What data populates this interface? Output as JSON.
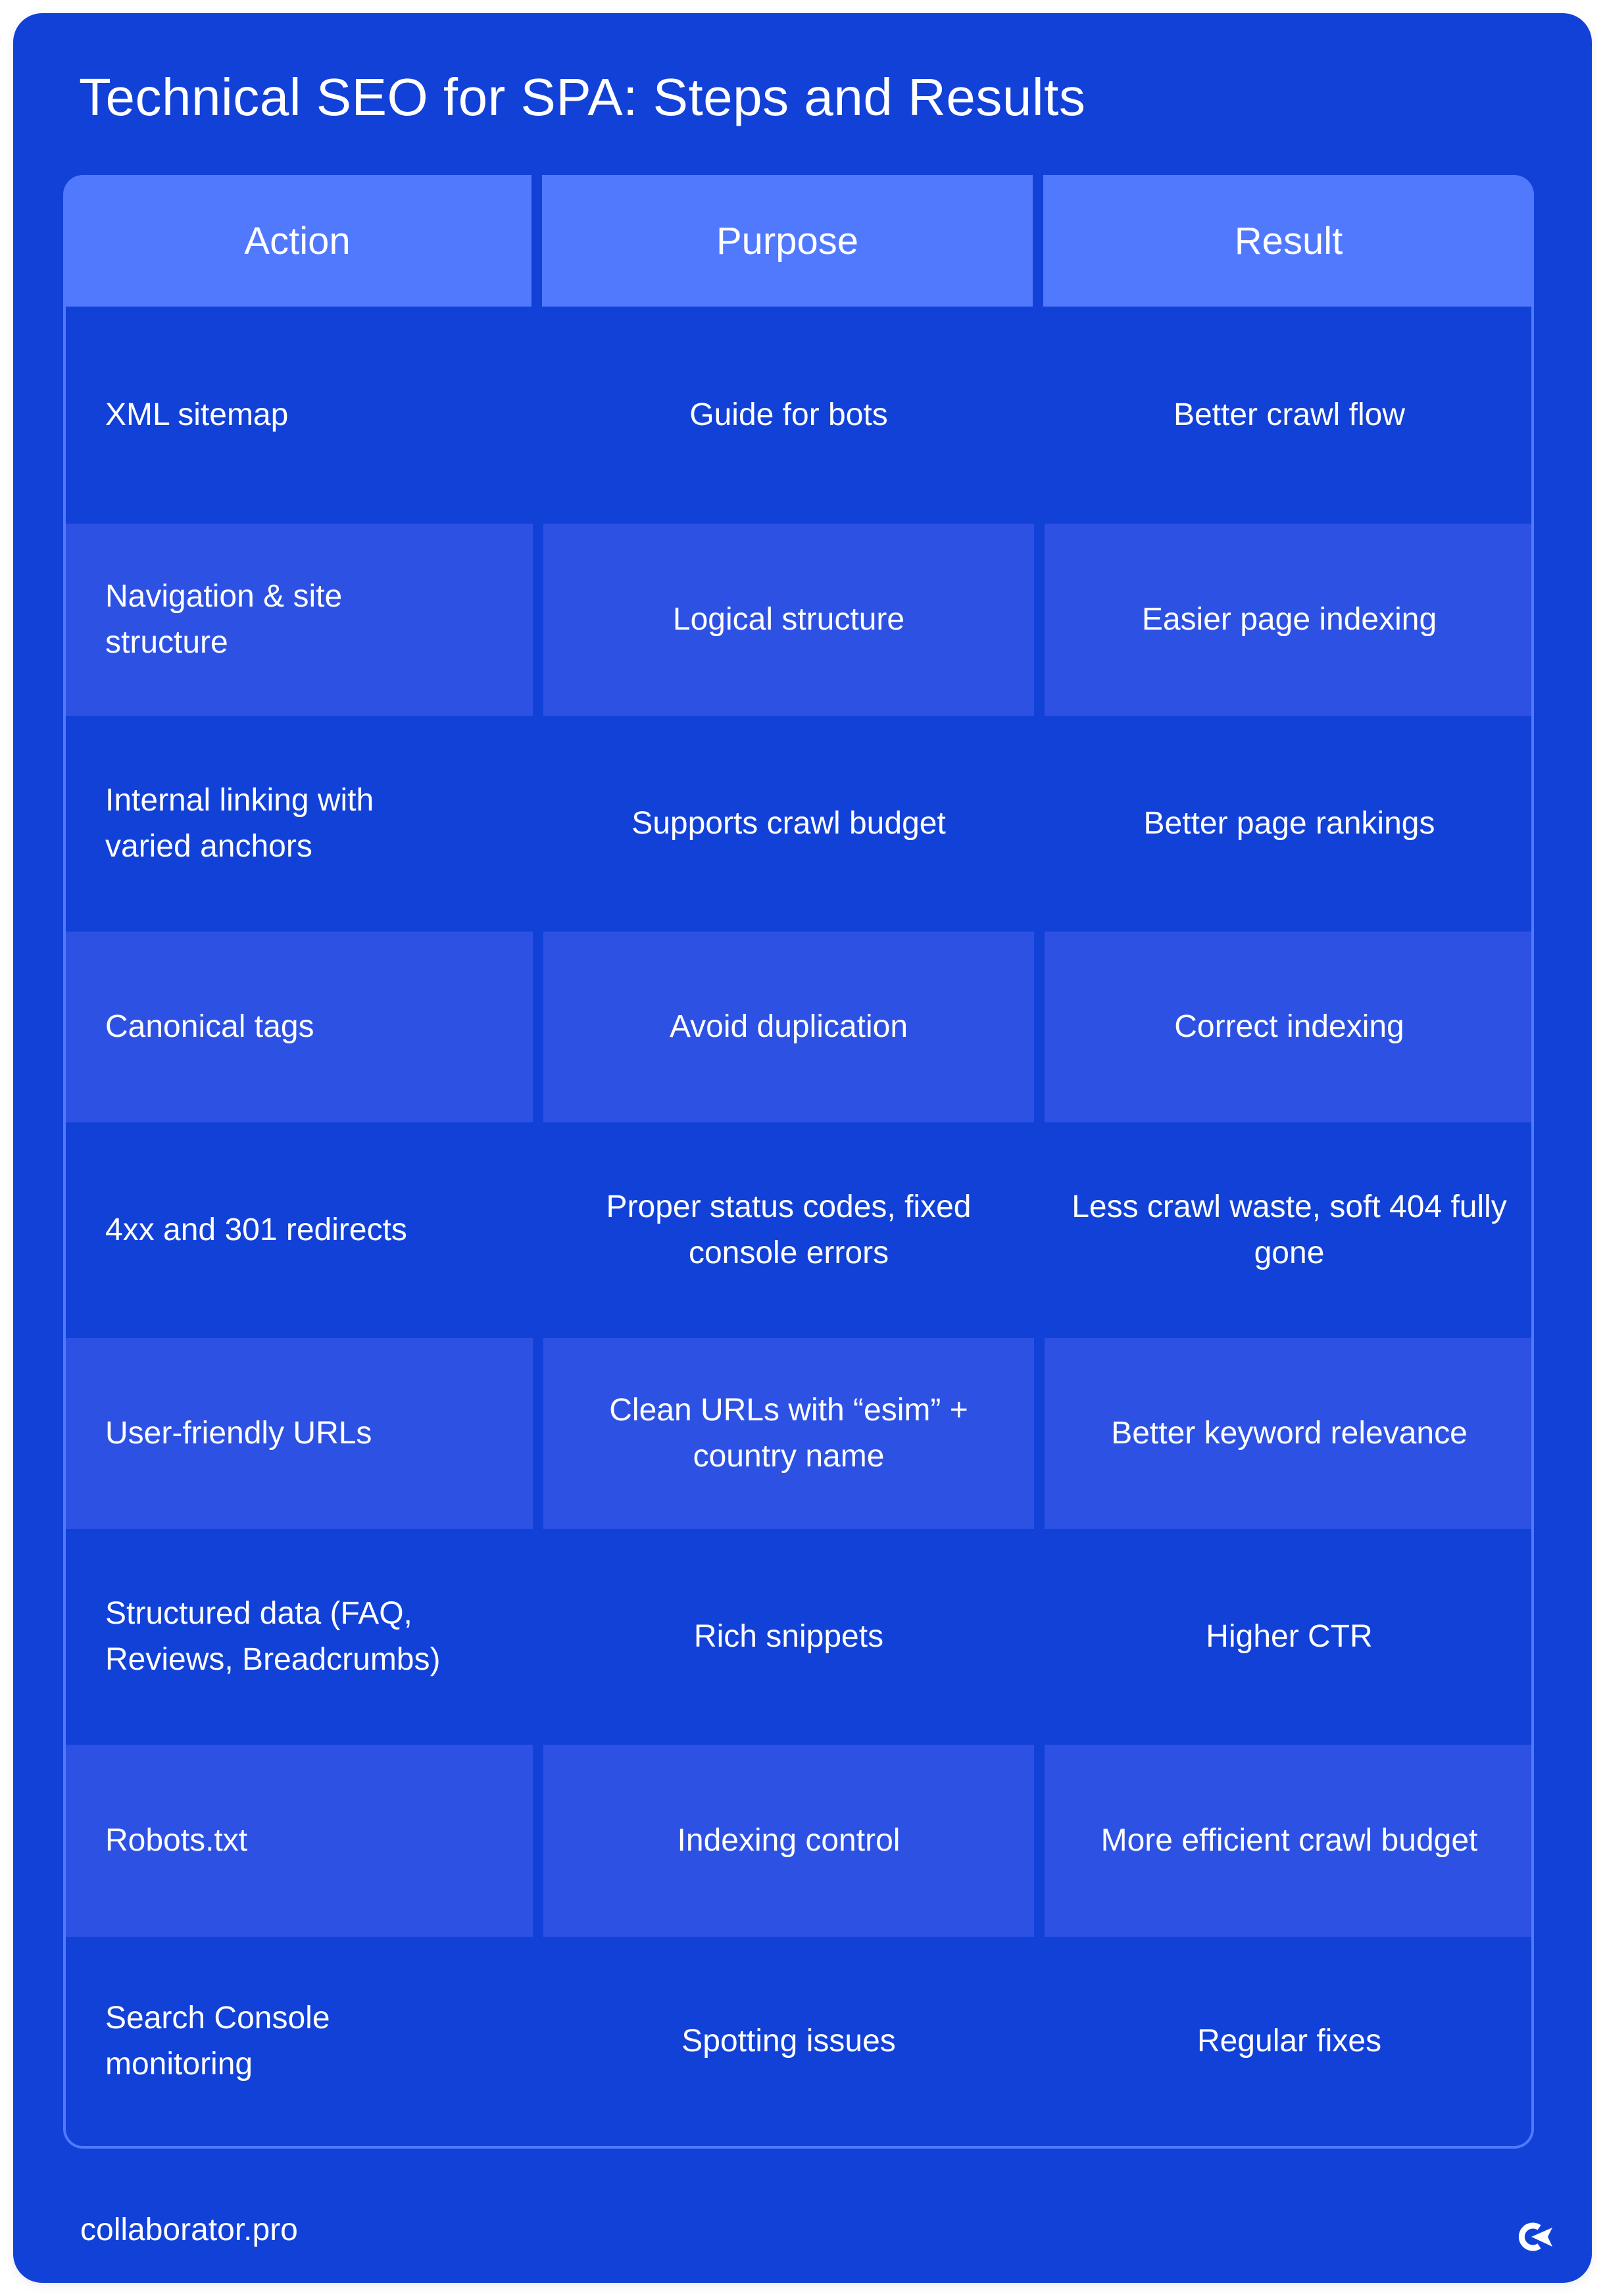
{
  "title": "Technical SEO for SPA: Steps and Results",
  "colors": {
    "background": "#1241D8",
    "header": "#5179FE",
    "row_alt": "#2D52E3",
    "text": "#FFFFFF"
  },
  "table": {
    "headers": [
      "Action",
      "Purpose",
      "Result"
    ],
    "rows": [
      {
        "action": "XML sitemap",
        "purpose": "Guide for bots",
        "result": "Better crawl flow"
      },
      {
        "action": "Navigation & site structure",
        "purpose": "Logical structure",
        "result": "Easier page indexing"
      },
      {
        "action": "Internal linking with varied anchors",
        "purpose": "Supports crawl budget",
        "result": "Better page rankings"
      },
      {
        "action": "Canonical tags",
        "purpose": "Avoid duplication",
        "result": "Correct indexing"
      },
      {
        "action": "4xx and 301 redirects",
        "purpose": "Proper status codes, fixed console errors",
        "result": "Less crawl waste, soft 404 fully gone"
      },
      {
        "action": "User-friendly URLs",
        "purpose": "Clean URLs with “esim” + country name",
        "result": "Better keyword relevance"
      },
      {
        "action": "Structured data (FAQ, Reviews, Breadcrumbs)",
        "purpose": "Rich snippets",
        "result": "Higher CTR"
      },
      {
        "action": "Robots.txt",
        "purpose": "Indexing control",
        "result": "More efficient crawl budget"
      },
      {
        "action": "Search Console monitoring",
        "purpose": "Spotting issues",
        "result": "Regular fixes"
      }
    ]
  },
  "footer": {
    "site": "collaborator.pro",
    "logo_icon": "collaborator-logo-icon"
  }
}
